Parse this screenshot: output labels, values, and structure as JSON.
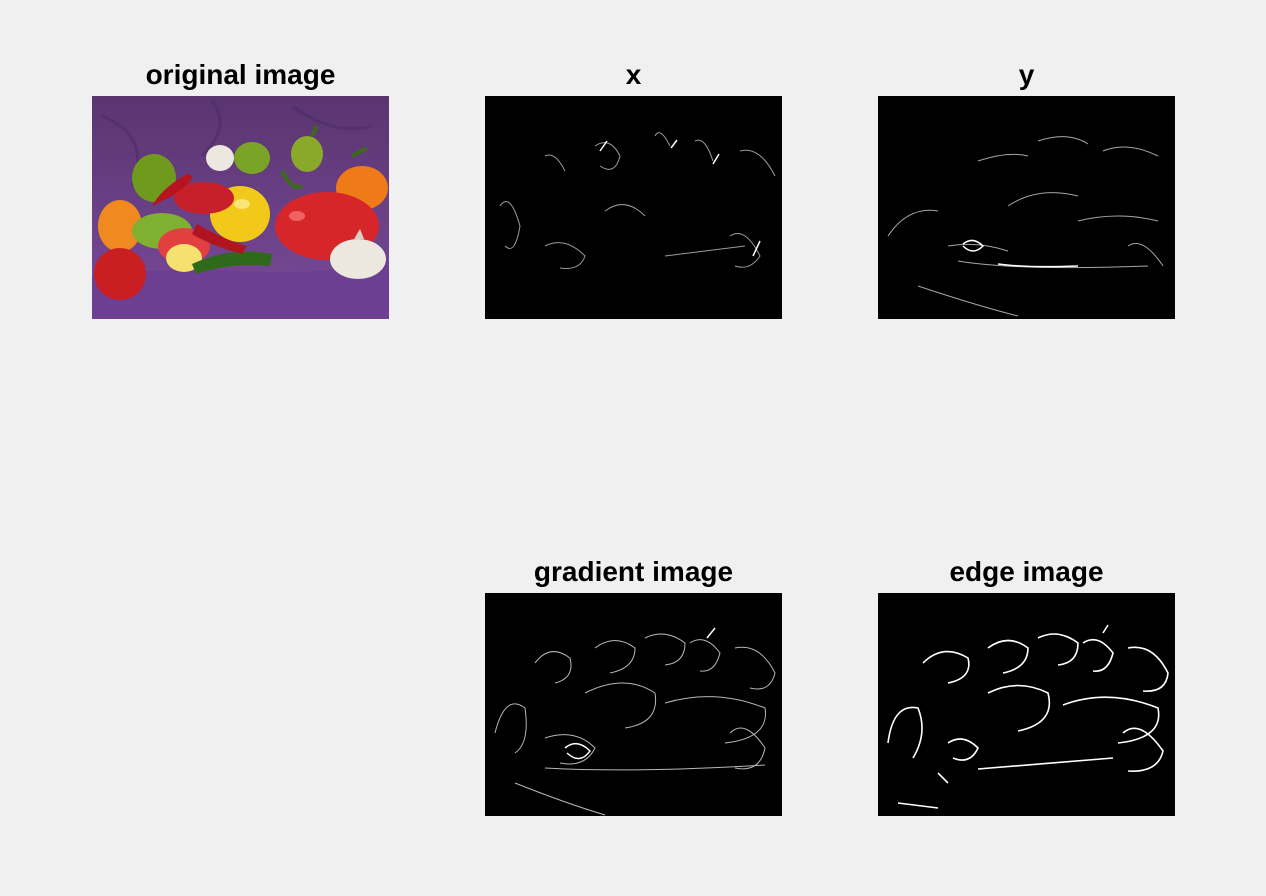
{
  "figure": {
    "panels": [
      {
        "title": "original image",
        "kind": "color-photo",
        "subject": "peppers-and-garlic"
      },
      {
        "title": "x",
        "kind": "gradient-x"
      },
      {
        "title": "y",
        "kind": "gradient-y"
      },
      {
        "title": "gradient image",
        "kind": "gradient-magnitude"
      },
      {
        "title": "edge image",
        "kind": "binary-edges"
      }
    ]
  },
  "colors": {
    "background": "#f0f0f0",
    "image_black": "#000000",
    "purple_cloth": "#6a3d85",
    "pepper_red": "#d6262a",
    "pepper_yellow": "#f2c81a",
    "pepper_green": "#6f9a1e",
    "pepper_orange": "#ee7a18",
    "garlic_white": "#ece7df"
  }
}
